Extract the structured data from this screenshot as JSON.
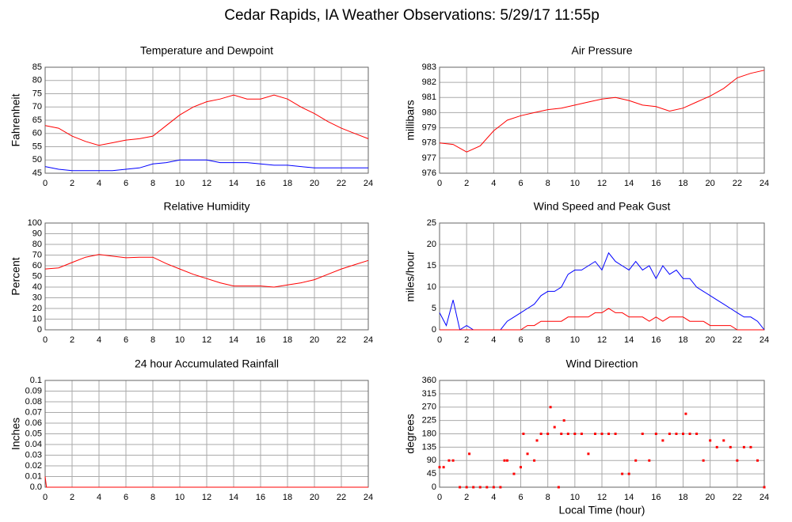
{
  "title": "Cedar Rapids, IA Weather Observations: 5/29/17 11:55p",
  "chart_data": [
    {
      "type": "line",
      "title": "Temperature and Dewpoint",
      "ylabel": "Fahrenheit",
      "x": [
        0,
        1,
        2,
        3,
        4,
        5,
        6,
        7,
        8,
        9,
        10,
        11,
        12,
        13,
        14,
        15,
        16,
        17,
        18,
        19,
        20,
        21,
        22,
        23,
        24
      ],
      "series": [
        {
          "color": "#ff0000",
          "values": [
            63,
            62,
            59,
            57,
            55.5,
            56.5,
            57.5,
            58,
            59,
            63,
            67,
            70,
            72,
            73,
            74.5,
            73,
            73,
            74.5,
            73,
            70,
            67.5,
            64.5,
            62,
            60,
            58
          ]
        },
        {
          "color": "#0000ff",
          "values": [
            47.5,
            46.5,
            46,
            46,
            46,
            46,
            46.5,
            47,
            48.5,
            49,
            50,
            50,
            50,
            49,
            49,
            49,
            48.5,
            48,
            48,
            47.5,
            47,
            47,
            47,
            47,
            47
          ]
        }
      ],
      "xlim": [
        0,
        24
      ],
      "xticks": [
        0,
        2,
        4,
        6,
        8,
        10,
        12,
        14,
        16,
        18,
        20,
        22,
        24
      ],
      "ylim": [
        45,
        85
      ],
      "yticks": [
        45,
        50,
        55,
        60,
        65,
        70,
        75,
        80,
        85
      ],
      "grid": true
    },
    {
      "type": "line",
      "title": "Air Pressure",
      "ylabel": "millibars",
      "x": [
        0,
        1,
        2,
        3,
        4,
        5,
        6,
        7,
        8,
        9,
        10,
        11,
        12,
        13,
        14,
        15,
        16,
        17,
        18,
        19,
        20,
        21,
        22,
        23,
        24
      ],
      "series": [
        {
          "color": "#ff0000",
          "values": [
            978.0,
            977.9,
            977.4,
            977.8,
            978.8,
            979.5,
            979.8,
            980.0,
            980.2,
            980.3,
            980.5,
            980.7,
            980.9,
            981.0,
            980.8,
            980.5,
            980.4,
            980.1,
            980.3,
            980.7,
            981.1,
            981.6,
            982.3,
            982.6,
            982.8
          ]
        }
      ],
      "xlim": [
        0,
        24
      ],
      "xticks": [
        0,
        2,
        4,
        6,
        8,
        10,
        12,
        14,
        16,
        18,
        20,
        22,
        24
      ],
      "ylim": [
        976,
        983
      ],
      "yticks": [
        976,
        977,
        978,
        979,
        980,
        981,
        982,
        983
      ],
      "grid": true
    },
    {
      "type": "line",
      "title": "Relative Humidity",
      "ylabel": "Percent",
      "x": [
        0,
        1,
        2,
        3,
        4,
        5,
        6,
        7,
        8,
        9,
        10,
        11,
        12,
        13,
        14,
        15,
        16,
        17,
        18,
        19,
        20,
        21,
        22,
        23,
        24
      ],
      "series": [
        {
          "color": "#ff0000",
          "values": [
            57,
            58,
            63,
            68,
            70.5,
            69,
            67.5,
            68,
            68,
            62,
            57,
            52,
            48,
            44,
            41,
            41,
            41,
            40,
            42,
            44,
            47,
            52,
            57,
            61,
            65
          ]
        }
      ],
      "xlim": [
        0,
        24
      ],
      "xticks": [
        0,
        2,
        4,
        6,
        8,
        10,
        12,
        14,
        16,
        18,
        20,
        22,
        24
      ],
      "ylim": [
        0,
        100
      ],
      "yticks": [
        0,
        10,
        20,
        30,
        40,
        50,
        60,
        70,
        80,
        90,
        100
      ],
      "grid": true
    },
    {
      "type": "line",
      "title": "Wind Speed and Peak Gust",
      "ylabel": "miles/hour",
      "x": [
        0,
        0.5,
        1,
        1.5,
        2,
        2.5,
        3,
        3.5,
        4,
        4.5,
        5,
        5.5,
        6,
        6.5,
        7,
        7.5,
        8,
        8.5,
        9,
        9.5,
        10,
        10.5,
        11,
        11.5,
        12,
        12.5,
        13,
        13.5,
        14,
        14.5,
        15,
        15.5,
        16,
        16.5,
        17,
        17.5,
        18,
        18.5,
        19,
        19.5,
        20,
        20.5,
        21,
        21.5,
        22,
        22.5,
        23,
        23.5,
        24
      ],
      "series": [
        {
          "color": "#0000ff",
          "values": [
            4,
            1,
            7,
            0,
            1,
            0,
            0,
            0,
            0,
            0,
            2,
            3,
            4,
            5,
            6,
            8,
            9,
            9,
            10,
            13,
            14,
            14,
            15,
            16,
            14,
            18,
            16,
            15,
            14,
            16,
            14,
            15,
            12,
            15,
            13,
            14,
            12,
            12,
            10,
            9,
            8,
            7,
            6,
            5,
            4,
            3,
            3,
            2,
            0
          ]
        },
        {
          "color": "#ff0000",
          "values": [
            0,
            0,
            0,
            0,
            0,
            0,
            0,
            0,
            0,
            0,
            0,
            0,
            0,
            1,
            1,
            2,
            2,
            2,
            2,
            3,
            3,
            3,
            3,
            4,
            4,
            5,
            4,
            4,
            3,
            3,
            3,
            2,
            3,
            2,
            3,
            3,
            3,
            2,
            2,
            2,
            1,
            1,
            1,
            1,
            0,
            0,
            0,
            0,
            0
          ]
        }
      ],
      "xlim": [
        0,
        24
      ],
      "xticks": [
        0,
        2,
        4,
        6,
        8,
        10,
        12,
        14,
        16,
        18,
        20,
        22,
        24
      ],
      "ylim": [
        0,
        25
      ],
      "yticks": [
        0,
        5,
        10,
        15,
        20,
        25
      ],
      "grid": true
    },
    {
      "type": "line",
      "title": "24 hour Accumulated Rainfall",
      "ylabel": "Inches",
      "x": [
        0,
        0.1,
        24
      ],
      "series": [
        {
          "color": "#ff0000",
          "values": [
            0.01,
            0,
            0
          ]
        }
      ],
      "xlim": [
        0,
        24
      ],
      "xticks": [
        0,
        2,
        4,
        6,
        8,
        10,
        12,
        14,
        16,
        18,
        20,
        22,
        24
      ],
      "ylim": [
        0,
        0.1
      ],
      "yticks": [
        {
          "value": 0,
          "label": "0.0"
        },
        0.01,
        0.02,
        0.03,
        0.04,
        0.05,
        0.06,
        0.07,
        0.08,
        0.09,
        0.1
      ],
      "grid": true
    },
    {
      "type": "scatter",
      "title": "Wind Direction",
      "ylabel": "degrees",
      "xlabel": "Local Time (hour)",
      "color": "#ff0000",
      "x": [
        0,
        0.3,
        0.7,
        1,
        1.5,
        2,
        2.2,
        2.5,
        3,
        3.5,
        4,
        4.5,
        4.8,
        5,
        5.5,
        6,
        6.2,
        6.5,
        7,
        7.2,
        7.5,
        8,
        8.2,
        8.5,
        8.8,
        9,
        9.2,
        9.5,
        10,
        10.5,
        11,
        11.5,
        12,
        12.5,
        13,
        13.5,
        14,
        14.5,
        15,
        15.5,
        16,
        16.5,
        17,
        17.5,
        18,
        18.2,
        18.5,
        19,
        19.5,
        20,
        20.5,
        21,
        21.5,
        22,
        22.5,
        23,
        23.5,
        24
      ],
      "values": [
        67.5,
        67.5,
        90,
        90,
        0,
        0,
        112.5,
        0,
        0,
        0,
        0,
        0,
        90,
        90,
        45,
        67.5,
        180,
        112.5,
        90,
        157.5,
        180,
        180,
        270,
        202.5,
        0,
        180,
        225,
        180,
        180,
        180,
        112.5,
        180,
        180,
        180,
        180,
        45,
        45,
        90,
        180,
        90,
        180,
        157.5,
        180,
        180,
        180,
        247.5,
        180,
        180,
        90,
        157.5,
        135,
        157.5,
        135,
        90,
        135,
        135,
        90,
        0
      ],
      "xlim": [
        0,
        24
      ],
      "xticks": [
        0,
        2,
        4,
        6,
        8,
        10,
        12,
        14,
        16,
        18,
        20,
        22,
        24
      ],
      "ylim": [
        0,
        360
      ],
      "yticks": [
        0,
        45,
        90,
        135,
        180,
        225,
        270,
        315,
        360
      ],
      "grid": true
    }
  ]
}
